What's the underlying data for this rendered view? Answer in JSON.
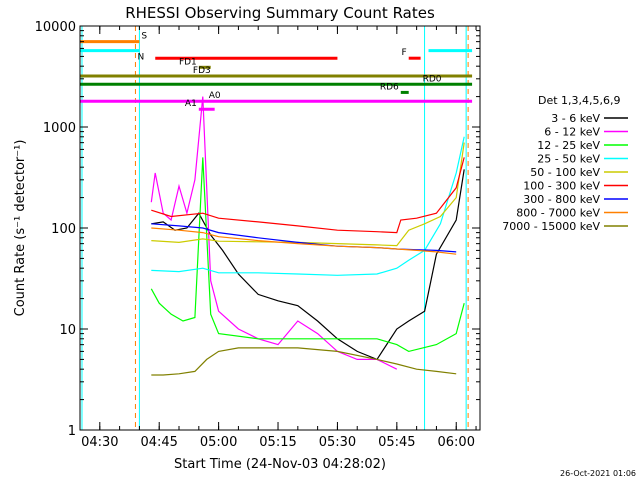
{
  "chart_data": {
    "type": "line",
    "title": "RHESSI Observing Summary Count Rates",
    "xlabel": "Start Time (24-Nov-03 04:28:02)",
    "ylabel": "Count Rate (s⁻¹ detector⁻¹)",
    "yscale": "log",
    "ylim": [
      1,
      10000
    ],
    "xlim": [
      "04:25",
      "06:06"
    ],
    "x_ticks": [
      "04:30",
      "04:45",
      "05:00",
      "05:15",
      "05:30",
      "05:45",
      "06:00"
    ],
    "y_ticks": [
      "1",
      "10",
      "100",
      "1000",
      "10000"
    ],
    "grid": false,
    "legend_title": "Det 1,3,4,5,6,9",
    "legend_position": "right",
    "series": [
      {
        "name": "3 - 6 keV",
        "color": "#000000",
        "x": [
          "04:43",
          "04:46",
          "04:49",
          "04:52",
          "04:55",
          "04:58",
          "05:01",
          "05:05",
          "05:10",
          "05:15",
          "05:20",
          "05:25",
          "05:30",
          "05:35",
          "05:40",
          "05:45",
          "05:48",
          "05:52",
          "05:55",
          "06:00",
          "06:02"
        ],
        "y": [
          110,
          115,
          95,
          100,
          140,
          85,
          60,
          35,
          22,
          19,
          17,
          12,
          8,
          6,
          5,
          10,
          12,
          15,
          55,
          120,
          380
        ]
      },
      {
        "name": "6 - 12 keV",
        "color": "#ff00ff",
        "x": [
          "04:43",
          "04:44",
          "04:46",
          "04:48",
          "04:50",
          "04:52",
          "04:54",
          "04:56",
          "04:58",
          "05:00",
          "05:05",
          "05:10",
          "05:15",
          "05:20",
          "05:25",
          "05:30",
          "05:35",
          "05:40",
          "05:45"
        ],
        "y": [
          180,
          350,
          140,
          120,
          260,
          140,
          300,
          2000,
          30,
          15,
          10,
          8,
          7,
          12,
          9,
          6,
          5,
          5,
          4
        ]
      },
      {
        "name": "12 - 25 keV",
        "color": "#00ff00",
        "x": [
          "04:43",
          "04:45",
          "04:48",
          "04:51",
          "04:54",
          "04:56",
          "04:58",
          "05:00",
          "05:10",
          "05:20",
          "05:30",
          "05:40",
          "05:45",
          "05:48",
          "05:55",
          "06:00",
          "06:02"
        ],
        "y": [
          25,
          18,
          14,
          12,
          13,
          500,
          14,
          9,
          8,
          8,
          8,
          8,
          7,
          6,
          7,
          9,
          18
        ]
      },
      {
        "name": "25 - 50 keV",
        "color": "#00ffff",
        "x": [
          "04:43",
          "04:50",
          "04:56",
          "05:00",
          "05:10",
          "05:20",
          "05:30",
          "05:40",
          "05:45",
          "05:48",
          "05:52",
          "05:56",
          "06:00",
          "06:02"
        ],
        "y": [
          38,
          37,
          40,
          36,
          36,
          35,
          34,
          35,
          40,
          48,
          60,
          110,
          350,
          800
        ]
      },
      {
        "name": "50 - 100 keV",
        "color": "#cccc00",
        "x": [
          "04:43",
          "04:50",
          "04:56",
          "05:00",
          "05:10",
          "05:20",
          "05:30",
          "05:40",
          "05:45",
          "05:48",
          "05:52",
          "05:56",
          "06:00",
          "06:02"
        ],
        "y": [
          75,
          72,
          78,
          74,
          73,
          72,
          70,
          68,
          67,
          95,
          110,
          130,
          200,
          700
        ]
      },
      {
        "name": "100 - 300 keV",
        "color": "#ff0000",
        "x": [
          "04:43",
          "04:48",
          "04:56",
          "05:00",
          "05:10",
          "05:20",
          "05:30",
          "05:40",
          "05:45",
          "05:46",
          "05:50",
          "05:55",
          "06:00",
          "06:02"
        ],
        "y": [
          150,
          130,
          140,
          125,
          115,
          105,
          95,
          92,
          90,
          120,
          125,
          140,
          250,
          500
        ]
      },
      {
        "name": "300 - 800 keV",
        "color": "#0000ff",
        "x": [
          "04:43",
          "04:50",
          "04:56",
          "05:00",
          "05:10",
          "05:20",
          "05:30",
          "05:40",
          "05:45",
          "05:50",
          "05:55",
          "06:00"
        ],
        "y": [
          110,
          105,
          100,
          90,
          80,
          72,
          66,
          64,
          62,
          61,
          60,
          58
        ]
      },
      {
        "name": "800 - 7000 keV",
        "color": "#ff8000",
        "x": [
          "04:43",
          "04:50",
          "04:56",
          "05:00",
          "05:10",
          "05:20",
          "05:30",
          "05:40",
          "05:45",
          "05:50",
          "05:55",
          "06:00"
        ],
        "y": [
          100,
          95,
          90,
          82,
          75,
          70,
          66,
          64,
          62,
          60,
          58,
          55
        ]
      },
      {
        "name": "7000 - 15000 keV",
        "color": "#808000",
        "x": [
          "04:43",
          "04:46",
          "04:50",
          "04:54",
          "04:57",
          "05:00",
          "05:05",
          "05:10",
          "05:20",
          "05:30",
          "05:40",
          "05:45",
          "05:50",
          "05:55",
          "06:00"
        ],
        "y": [
          3.5,
          3.5,
          3.6,
          3.8,
          5,
          6,
          6.5,
          6.5,
          6.5,
          6,
          5,
          4.5,
          4,
          3.8,
          3.6
        ]
      }
    ],
    "state_bars": [
      {
        "label": "S",
        "color": "#ff8000",
        "y": 7000,
        "segments": [
          [
            "04:25",
            "04:40"
          ]
        ]
      },
      {
        "label": "N",
        "color": "#00ffff",
        "y": 5700,
        "segments": [
          [
            "04:25",
            "04:40"
          ],
          [
            "05:53",
            "06:04"
          ]
        ]
      },
      {
        "label": "F",
        "color": "#ff0000",
        "y": 4800,
        "segments": [
          [
            "04:44",
            "05:30"
          ],
          [
            "05:48",
            "05:51"
          ]
        ]
      },
      {
        "label": "FD1",
        "color": "#808000",
        "y": 3900,
        "segments": [
          [
            "04:55",
            "04:58"
          ]
        ]
      },
      {
        "label": "FD3",
        "color": "#808000",
        "y": 3200,
        "segments": [
          [
            "04:25",
            "06:04"
          ]
        ]
      },
      {
        "label": "RD0",
        "color": "#008000",
        "y": 2650,
        "segments": [
          [
            "04:25",
            "06:04"
          ]
        ]
      },
      {
        "label": "RD6",
        "color": "#008000",
        "y": 2200,
        "segments": [
          [
            "05:46",
            "05:48"
          ]
        ]
      },
      {
        "label": "A0",
        "color": "#ff00ff",
        "y": 1800,
        "segments": [
          [
            "04:25",
            "06:04"
          ]
        ]
      },
      {
        "label": "A1",
        "color": "#ff00ff",
        "y": 1500,
        "segments": [
          [
            "04:55",
            "04:59"
          ]
        ]
      }
    ],
    "vlines": [
      {
        "x": "04:39",
        "color": "#ff8000",
        "style": "dashed"
      },
      {
        "x": "04:40",
        "color": "#00ffff",
        "style": "solid"
      },
      {
        "x": "04:25.5",
        "color": "#00ffff",
        "style": "solid"
      },
      {
        "x": "05:52",
        "color": "#00ffff",
        "style": "solid"
      },
      {
        "x": "06:02.5",
        "color": "#00ffff",
        "style": "solid"
      },
      {
        "x": "06:03",
        "color": "#ff8000",
        "style": "dashed"
      }
    ],
    "timestamp": "26-Oct-2021 01:06"
  }
}
